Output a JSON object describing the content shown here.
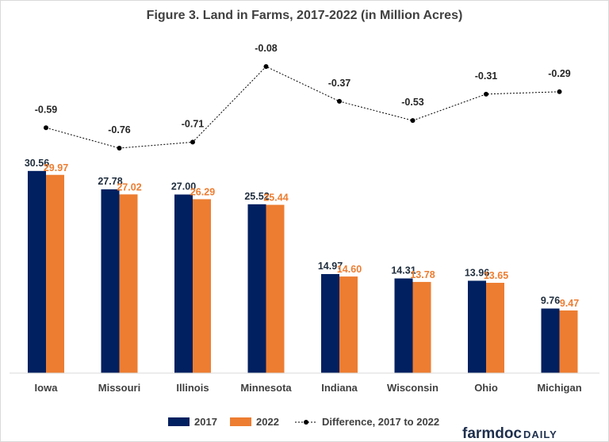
{
  "chart_data": {
    "type": "bar",
    "title": "Figure 3. Land in Farms, 2017-2022 (in Million Acres)",
    "categories": [
      "Iowa",
      "Missouri",
      "Illinois",
      "Minnesota",
      "Indiana",
      "Wisconsin",
      "Ohio",
      "Michigan"
    ],
    "series": [
      {
        "name": "2017",
        "type": "bar",
        "color": "#002060",
        "values": [
          30.56,
          27.78,
          27.0,
          25.52,
          14.97,
          14.31,
          13.96,
          9.76
        ],
        "labels": [
          "30.56",
          "27.78",
          "27.00",
          "25.52",
          "14.97",
          "14.31",
          "13.96",
          "9.76"
        ]
      },
      {
        "name": "2022",
        "type": "bar",
        "color": "#ed7d31",
        "values": [
          29.97,
          27.02,
          26.29,
          25.44,
          14.6,
          13.78,
          13.65,
          9.47
        ],
        "labels": [
          "29.97",
          "27.02",
          "26.29",
          "25.44",
          "14.60",
          "13.78",
          "13.65",
          "9.47"
        ]
      },
      {
        "name": "Difference, 2017 to 2022",
        "type": "line",
        "style": "dotted",
        "color": "#000000",
        "values": [
          -0.59,
          -0.76,
          -0.71,
          -0.08,
          -0.37,
          -0.53,
          -0.31,
          -0.29
        ],
        "labels": [
          "-0.59",
          "-0.76",
          "-0.71",
          "-0.08",
          "-0.37",
          "-0.53",
          "-0.31",
          "-0.29"
        ]
      }
    ],
    "legend_position": "bottom",
    "grid": false
  },
  "brand": {
    "part1": "farmdoc",
    "part2": "DAILY"
  }
}
